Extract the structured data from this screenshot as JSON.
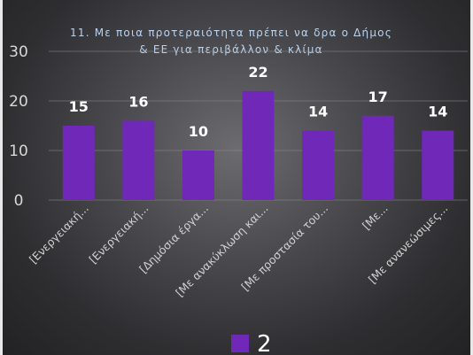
{
  "chart_data": {
    "type": "bar",
    "title_lines": [
      "11. Με ποια προτεραιότητα πρέπει να δρα ο Δήμος",
      "& ΕΕ για περιβάλλον & κλίμα"
    ],
    "categories": [
      "[Ενεργειακή...",
      "[Ενεργειακή...",
      "[Δημόσια έργα...",
      "[Με ανακύκλωση και...",
      "[Με προστασία του...",
      "[Με...",
      "[Με ανανεώσιμες..."
    ],
    "series": [
      {
        "name": "2",
        "values": [
          15,
          16,
          10,
          22,
          14,
          17,
          14
        ]
      }
    ],
    "yticks": [
      "30",
      "20",
      "10",
      "0"
    ],
    "ylim": [
      0,
      30
    ],
    "grid": true,
    "legend_position": "bottom",
    "colors": {
      "bar": "#7028b8",
      "text": "#ffffff",
      "title": "#b9d2ee"
    }
  }
}
